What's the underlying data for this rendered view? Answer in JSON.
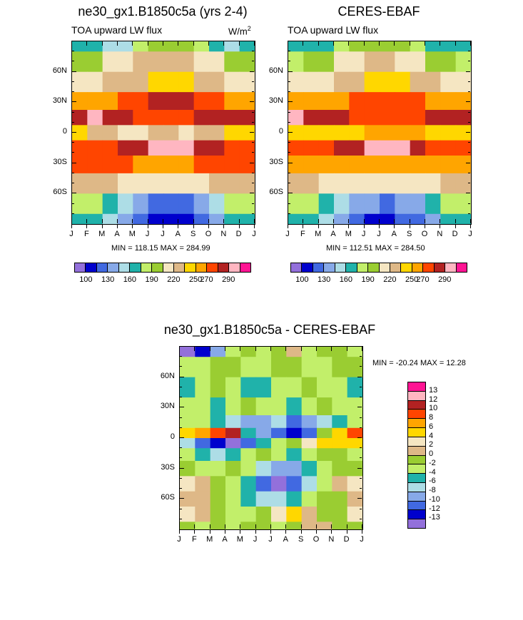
{
  "chart_data": [
    {
      "type": "heatmap",
      "title": "ne30_gx1.B1850c5a (yrs 2-4)",
      "subtitle": "TOA upward LW flux",
      "units": "W/m",
      "units_exponent": "2",
      "stats": "MIN = 118.15 MAX = 284.99",
      "min": 118.15,
      "max": 284.99,
      "x_ticks": [
        "J",
        "F",
        "M",
        "A",
        "M",
        "J",
        "J",
        "A",
        "S",
        "O",
        "N",
        "D",
        "J"
      ],
      "y_ticks": [
        "60N",
        "30N",
        "0",
        "30S",
        "60S"
      ],
      "colorbar_labels": [
        "100",
        "130",
        "160",
        "190",
        "220",
        "250",
        "270",
        "290"
      ],
      "colorbar_colors": [
        "#9370DB",
        "#0000CD",
        "#4169E1",
        "#87A9E8",
        "#ADDDE6",
        "#20B2AA",
        "#C2EF6A",
        "#9ACD32",
        "#F5E6C2",
        "#DEB887",
        "#FFD700",
        "#FFA500",
        "#FF4500",
        "#B22222",
        "#FFB6C1",
        "#FF1493"
      ],
      "palette_index": [
        {
          "lat": 90,
          "months": [
            5,
            5,
            4,
            4,
            6,
            7,
            7,
            7,
            6,
            5,
            4,
            5
          ]
        },
        {
          "lat": 70,
          "months": [
            7,
            7,
            8,
            8,
            9,
            9,
            9,
            9,
            8,
            8,
            7,
            7
          ]
        },
        {
          "lat": 50,
          "months": [
            8,
            8,
            9,
            9,
            9,
            10,
            10,
            10,
            9,
            9,
            8,
            8
          ]
        },
        {
          "lat": 30,
          "months": [
            11,
            11,
            11,
            12,
            12,
            13,
            13,
            13,
            12,
            12,
            11,
            11
          ]
        },
        {
          "lat": 15,
          "months": [
            13,
            14,
            13,
            13,
            12,
            12,
            12,
            12,
            13,
            13,
            13,
            13
          ]
        },
        {
          "lat": 0,
          "months": [
            10,
            9,
            9,
            8,
            8,
            9,
            9,
            8,
            9,
            9,
            10,
            10
          ]
        },
        {
          "lat": -15,
          "months": [
            12,
            12,
            12,
            13,
            13,
            14,
            14,
            14,
            13,
            13,
            12,
            12
          ]
        },
        {
          "lat": -30,
          "months": [
            12,
            12,
            12,
            12,
            11,
            11,
            11,
            11,
            12,
            12,
            12,
            12
          ]
        },
        {
          "lat": -50,
          "months": [
            9,
            9,
            9,
            8,
            8,
            8,
            8,
            8,
            8,
            9,
            9,
            9
          ]
        },
        {
          "lat": -70,
          "months": [
            6,
            6,
            5,
            4,
            3,
            2,
            2,
            2,
            3,
            4,
            6,
            6
          ]
        },
        {
          "lat": -90,
          "months": [
            5,
            5,
            4,
            3,
            2,
            1,
            1,
            1,
            2,
            3,
            5,
            5
          ]
        }
      ]
    },
    {
      "type": "heatmap",
      "title": "CERES-EBAF",
      "subtitle": "TOA upward LW flux",
      "stats": "MIN = 112.51 MAX = 284.50",
      "min": 112.51,
      "max": 284.5,
      "x_ticks": [
        "J",
        "F",
        "M",
        "A",
        "M",
        "J",
        "J",
        "A",
        "S",
        "O",
        "N",
        "D",
        "J"
      ],
      "y_ticks": [
        "60N",
        "30N",
        "0",
        "30S",
        "60S"
      ],
      "colorbar_labels": [
        "100",
        "130",
        "160",
        "190",
        "220",
        "250",
        "270",
        "290"
      ],
      "colorbar_colors": [
        "#9370DB",
        "#0000CD",
        "#4169E1",
        "#87A9E8",
        "#ADDDE6",
        "#20B2AA",
        "#C2EF6A",
        "#9ACD32",
        "#F5E6C2",
        "#DEB887",
        "#FFD700",
        "#FFA500",
        "#FF4500",
        "#B22222",
        "#FFB6C1",
        "#FF1493"
      ],
      "palette_index": [
        {
          "lat": 90,
          "months": [
            5,
            5,
            5,
            6,
            7,
            7,
            7,
            7,
            6,
            5,
            5,
            5
          ]
        },
        {
          "lat": 70,
          "months": [
            6,
            7,
            7,
            8,
            8,
            9,
            9,
            8,
            8,
            7,
            7,
            6
          ]
        },
        {
          "lat": 50,
          "months": [
            8,
            8,
            8,
            9,
            9,
            10,
            10,
            10,
            9,
            9,
            8,
            8
          ]
        },
        {
          "lat": 30,
          "months": [
            11,
            11,
            11,
            11,
            12,
            12,
            12,
            12,
            12,
            11,
            11,
            11
          ]
        },
        {
          "lat": 15,
          "months": [
            14,
            13,
            13,
            13,
            12,
            12,
            12,
            12,
            12,
            13,
            13,
            13
          ]
        },
        {
          "lat": 0,
          "months": [
            10,
            10,
            10,
            10,
            10,
            11,
            11,
            11,
            11,
            10,
            10,
            10
          ]
        },
        {
          "lat": -15,
          "months": [
            12,
            12,
            12,
            13,
            13,
            14,
            14,
            14,
            13,
            12,
            12,
            12
          ]
        },
        {
          "lat": -30,
          "months": [
            11,
            11,
            11,
            11,
            11,
            11,
            11,
            11,
            11,
            11,
            11,
            11
          ]
        },
        {
          "lat": -50,
          "months": [
            9,
            9,
            8,
            8,
            8,
            8,
            8,
            8,
            8,
            8,
            9,
            9
          ]
        },
        {
          "lat": -70,
          "months": [
            6,
            6,
            5,
            4,
            3,
            3,
            2,
            3,
            3,
            5,
            6,
            6
          ]
        },
        {
          "lat": -90,
          "months": [
            5,
            5,
            4,
            3,
            2,
            1,
            1,
            2,
            2,
            3,
            5,
            5
          ]
        }
      ]
    },
    {
      "type": "heatmap",
      "title": "ne30_gx1.B1850c5a - CERES-EBAF",
      "stats": "MIN = -20.24 MAX =  12.28",
      "min": -20.24,
      "max": 12.28,
      "x_ticks": [
        "J",
        "F",
        "M",
        "A",
        "M",
        "J",
        "J",
        "A",
        "S",
        "O",
        "N",
        "D",
        "J"
      ],
      "y_ticks": [
        "60N",
        "30N",
        "0",
        "30S",
        "60S"
      ],
      "colorbar_labels": [
        "13",
        "12",
        "10",
        "8",
        "6",
        "4",
        "2",
        "0",
        "-2",
        "-4",
        "-6",
        "-8",
        "-10",
        "-12",
        "-13"
      ],
      "colorbar_colors": [
        "#FF1493",
        "#FFB6C1",
        "#B22222",
        "#FF4500",
        "#FFA500",
        "#FFD700",
        "#F5E6C2",
        "#DEB887",
        "#9ACD32",
        "#C2EF6A",
        "#20B2AA",
        "#ADDDE6",
        "#87A9E8",
        "#4169E1",
        "#0000CD",
        "#9370DB"
      ],
      "palette_index": [
        {
          "lat": 90,
          "months": [
            15,
            14,
            12,
            9,
            8,
            9,
            8,
            7,
            9,
            8,
            8,
            9
          ]
        },
        {
          "lat": 70,
          "months": [
            9,
            9,
            8,
            8,
            9,
            9,
            8,
            8,
            9,
            9,
            8,
            8
          ]
        },
        {
          "lat": 50,
          "months": [
            10,
            9,
            8,
            9,
            10,
            10,
            9,
            9,
            8,
            9,
            9,
            10
          ]
        },
        {
          "lat": 30,
          "months": [
            9,
            9,
            10,
            9,
            8,
            9,
            9,
            10,
            9,
            8,
            9,
            9
          ]
        },
        {
          "lat": 15,
          "months": [
            9,
            9,
            10,
            11,
            12,
            12,
            11,
            13,
            12,
            11,
            10,
            9
          ]
        },
        {
          "lat": 5,
          "months": [
            5,
            4,
            3,
            2,
            10,
            12,
            13,
            14,
            13,
            8,
            5,
            3
          ]
        },
        {
          "lat": -5,
          "months": [
            11,
            13,
            14,
            15,
            13,
            10,
            9,
            8,
            6,
            5,
            5,
            5
          ]
        },
        {
          "lat": -15,
          "months": [
            9,
            10,
            11,
            10,
            9,
            8,
            9,
            10,
            9,
            8,
            8,
            9
          ]
        },
        {
          "lat": -30,
          "months": [
            8,
            9,
            9,
            8,
            9,
            11,
            12,
            12,
            10,
            9,
            8,
            8
          ]
        },
        {
          "lat": -45,
          "months": [
            6,
            7,
            8,
            9,
            10,
            13,
            15,
            13,
            11,
            9,
            7,
            6
          ]
        },
        {
          "lat": -60,
          "months": [
            7,
            7,
            8,
            9,
            10,
            11,
            11,
            10,
            9,
            8,
            8,
            7
          ]
        },
        {
          "lat": -75,
          "months": [
            6,
            7,
            8,
            9,
            9,
            8,
            6,
            5,
            7,
            8,
            8,
            6
          ]
        },
        {
          "lat": -90,
          "months": [
            8,
            9,
            8,
            9,
            8,
            8,
            9,
            8,
            7,
            7,
            8,
            8
          ]
        }
      ]
    }
  ]
}
